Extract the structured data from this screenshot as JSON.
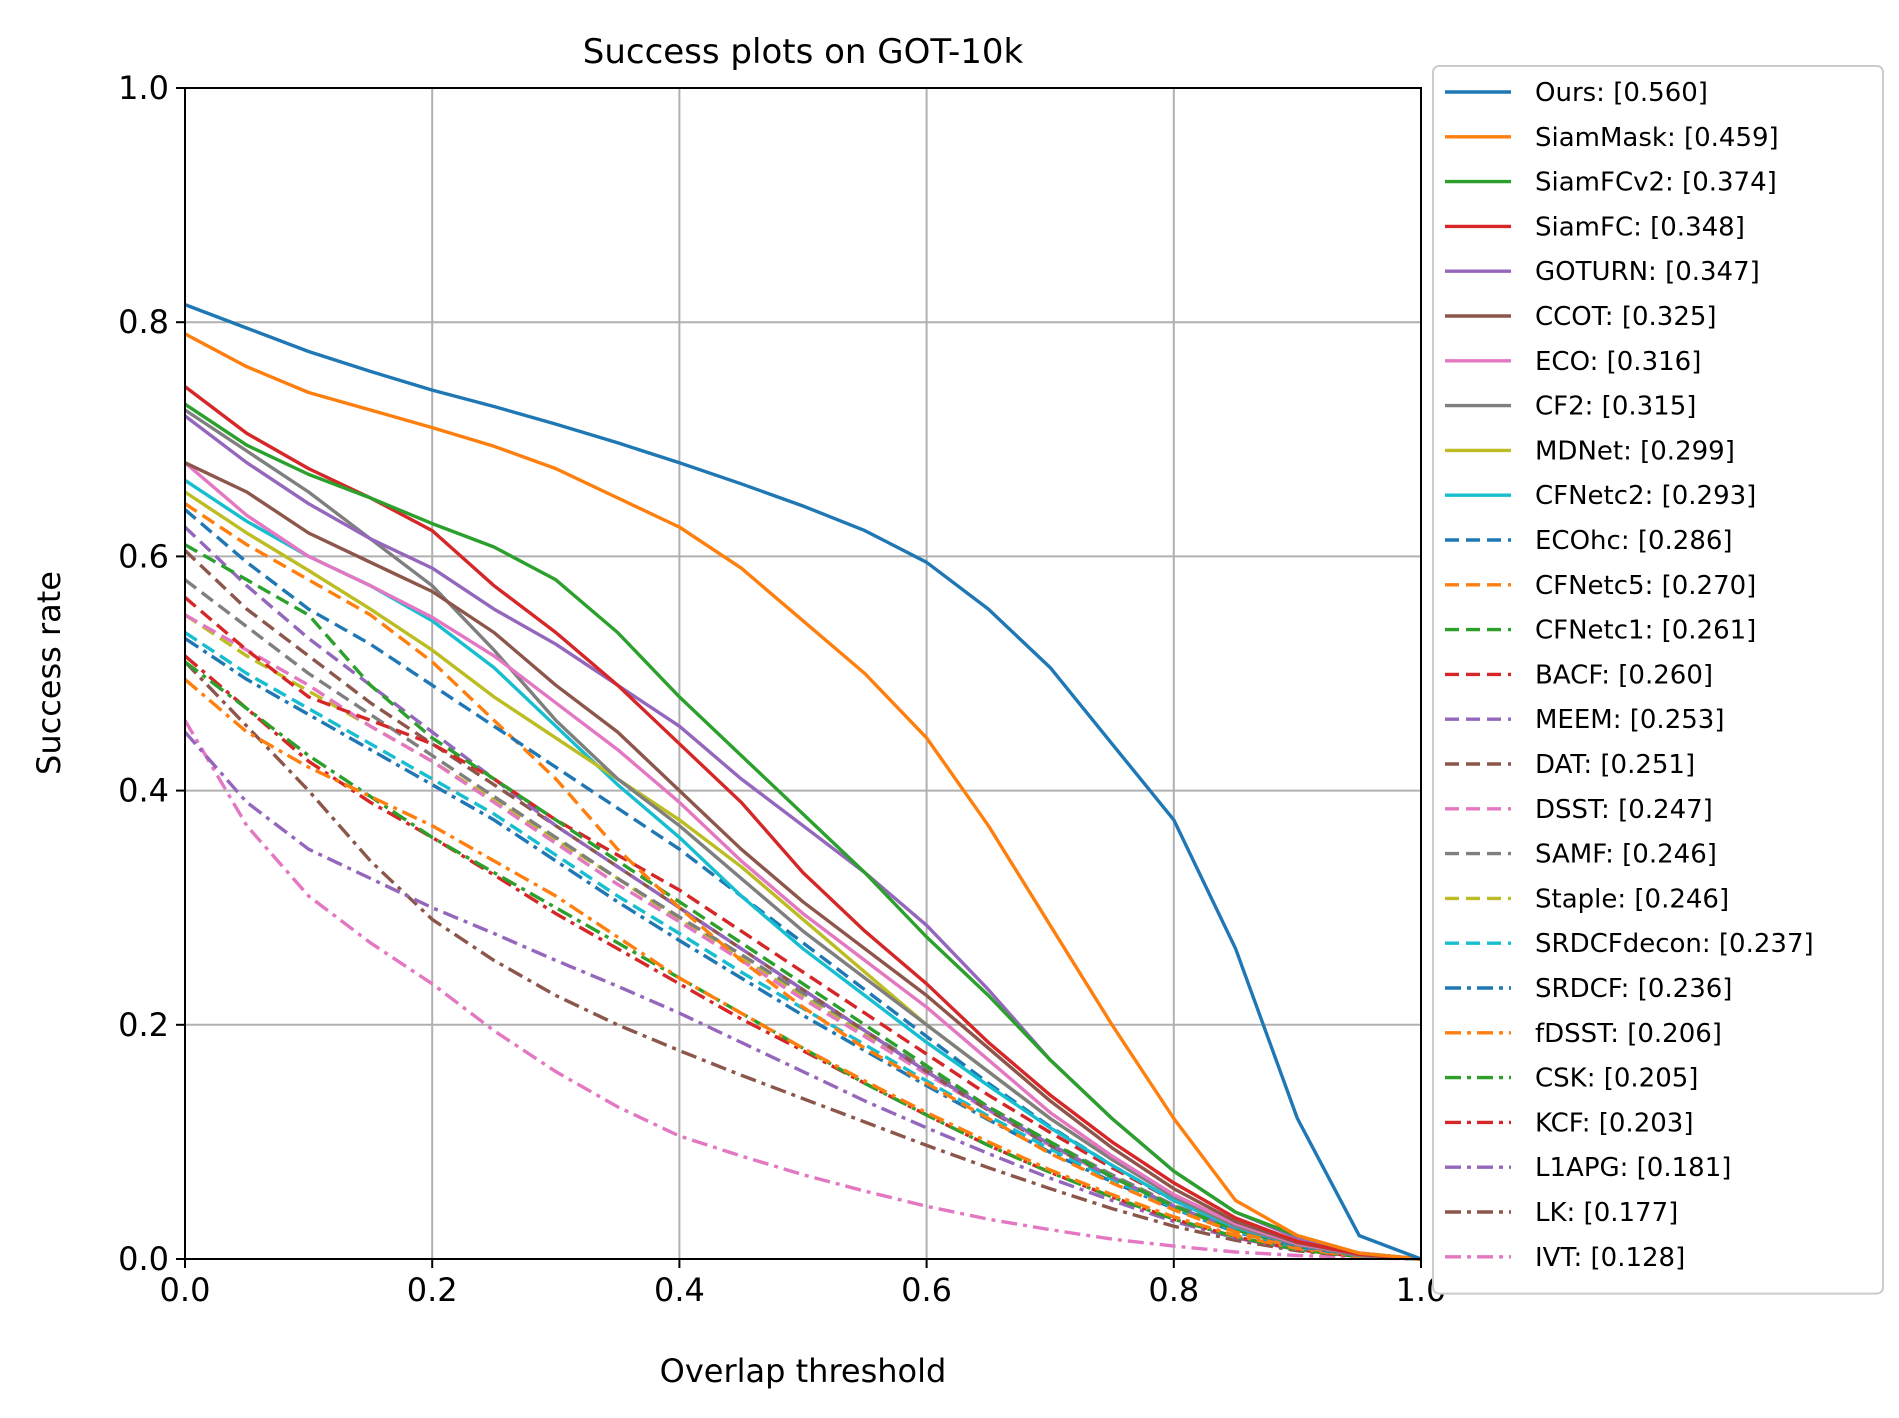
{
  "chart_data": {
    "type": "line",
    "title": "Success plots on GOT-10k",
    "xlabel": "Overlap threshold",
    "ylabel": "Success rate",
    "xlim": [
      0,
      1
    ],
    "ylim": [
      0,
      1
    ],
    "xticks": [
      "0.0",
      "0.2",
      "0.4",
      "0.6",
      "0.8",
      "1.0"
    ],
    "yticks": [
      "0.0",
      "0.2",
      "0.4",
      "0.6",
      "0.8",
      "1.0"
    ],
    "grid": true,
    "legend_position": "outside-right",
    "x": [
      0,
      0.05,
      0.1,
      0.15,
      0.2,
      0.25,
      0.3,
      0.35,
      0.4,
      0.45,
      0.5,
      0.55,
      0.6,
      0.65,
      0.7,
      0.75,
      0.8,
      0.85,
      0.9,
      0.95,
      1.0
    ],
    "series": [
      {
        "name": "Ours",
        "legend": "Ours: [0.560]",
        "color": "#1f77b4",
        "dash": "solid",
        "values": [
          0.815,
          0.795,
          0.775,
          0.758,
          0.742,
          0.728,
          0.713,
          0.697,
          0.68,
          0.662,
          0.643,
          0.622,
          0.595,
          0.555,
          0.505,
          0.44,
          0.375,
          0.265,
          0.12,
          0.02,
          0.0
        ]
      },
      {
        "name": "SiamMask",
        "legend": "SiamMask: [0.459]",
        "color": "#ff7f0e",
        "dash": "solid",
        "values": [
          0.79,
          0.762,
          0.74,
          0.725,
          0.71,
          0.694,
          0.675,
          0.65,
          0.625,
          0.59,
          0.545,
          0.5,
          0.445,
          0.37,
          0.285,
          0.2,
          0.12,
          0.05,
          0.02,
          0.005,
          0.0
        ]
      },
      {
        "name": "SiamFCv2",
        "legend": "SiamFCv2: [0.374]",
        "color": "#2ca02c",
        "dash": "solid",
        "values": [
          0.73,
          0.695,
          0.67,
          0.65,
          0.628,
          0.608,
          0.58,
          0.535,
          0.48,
          0.43,
          0.38,
          0.33,
          0.275,
          0.225,
          0.17,
          0.12,
          0.075,
          0.04,
          0.02,
          0.005,
          0.0
        ]
      },
      {
        "name": "SiamFC",
        "legend": "SiamFC: [0.348]",
        "color": "#d62728",
        "dash": "solid",
        "values": [
          0.745,
          0.705,
          0.675,
          0.65,
          0.622,
          0.575,
          0.535,
          0.49,
          0.44,
          0.39,
          0.33,
          0.28,
          0.235,
          0.185,
          0.14,
          0.1,
          0.065,
          0.035,
          0.015,
          0.004,
          0.0
        ]
      },
      {
        "name": "GOTURN",
        "legend": "GOTURN: [0.347]",
        "color": "#9467bd",
        "dash": "solid",
        "values": [
          0.72,
          0.68,
          0.645,
          0.615,
          0.59,
          0.555,
          0.525,
          0.49,
          0.455,
          0.41,
          0.37,
          0.33,
          0.285,
          0.23,
          0.17,
          0.12,
          0.075,
          0.04,
          0.018,
          0.005,
          0.0
        ]
      },
      {
        "name": "CCOT",
        "legend": "CCOT: [0.325]",
        "color": "#8c564b",
        "dash": "solid",
        "values": [
          0.68,
          0.655,
          0.62,
          0.595,
          0.57,
          0.535,
          0.49,
          0.45,
          0.4,
          0.35,
          0.305,
          0.265,
          0.225,
          0.18,
          0.135,
          0.095,
          0.06,
          0.032,
          0.014,
          0.004,
          0.0
        ]
      },
      {
        "name": "ECO",
        "legend": "ECO: [0.316]",
        "color": "#e377c2",
        "dash": "solid",
        "values": [
          0.68,
          0.635,
          0.6,
          0.575,
          0.548,
          0.515,
          0.475,
          0.435,
          0.39,
          0.34,
          0.295,
          0.255,
          0.215,
          0.17,
          0.125,
          0.088,
          0.055,
          0.03,
          0.013,
          0.004,
          0.0
        ]
      },
      {
        "name": "CF2",
        "legend": "CF2: [0.315]",
        "color": "#7f7f7f",
        "dash": "solid",
        "values": [
          0.725,
          0.69,
          0.655,
          0.615,
          0.575,
          0.52,
          0.46,
          0.41,
          0.37,
          0.325,
          0.28,
          0.24,
          0.2,
          0.16,
          0.12,
          0.085,
          0.053,
          0.028,
          0.012,
          0.003,
          0.0
        ]
      },
      {
        "name": "MDNet",
        "legend": "MDNet: [0.299]",
        "color": "#bcbd22",
        "dash": "solid",
        "values": [
          0.655,
          0.62,
          0.588,
          0.555,
          0.52,
          0.48,
          0.445,
          0.41,
          0.375,
          0.335,
          0.29,
          0.245,
          0.2,
          0.16,
          0.12,
          0.085,
          0.055,
          0.03,
          0.013,
          0.004,
          0.0
        ]
      },
      {
        "name": "CFNetc2",
        "legend": "CFNetc2: [0.293]",
        "color": "#17becf",
        "dash": "solid",
        "values": [
          0.665,
          0.63,
          0.6,
          0.575,
          0.545,
          0.505,
          0.455,
          0.405,
          0.36,
          0.31,
          0.265,
          0.225,
          0.185,
          0.148,
          0.112,
          0.08,
          0.05,
          0.027,
          0.012,
          0.003,
          0.0
        ]
      },
      {
        "name": "ECOhc",
        "legend": "ECOhc: [0.286]",
        "color": "#1f77b4",
        "dash": "dashed",
        "values": [
          0.64,
          0.595,
          0.555,
          0.525,
          0.49,
          0.455,
          0.42,
          0.385,
          0.35,
          0.31,
          0.27,
          0.23,
          0.19,
          0.15,
          0.113,
          0.08,
          0.05,
          0.027,
          0.011,
          0.003,
          0.0
        ]
      },
      {
        "name": "CFNetc5",
        "legend": "CFNetc5: [0.270]",
        "color": "#ff7f0e",
        "dash": "dashed",
        "values": [
          0.645,
          0.61,
          0.58,
          0.55,
          0.51,
          0.46,
          0.41,
          0.35,
          0.3,
          0.255,
          0.215,
          0.18,
          0.15,
          0.12,
          0.09,
          0.065,
          0.042,
          0.023,
          0.01,
          0.003,
          0.0
        ]
      },
      {
        "name": "CFNetc1",
        "legend": "CFNetc1: [0.261]",
        "color": "#2ca02c",
        "dash": "dashed",
        "values": [
          0.61,
          0.58,
          0.55,
          0.49,
          0.445,
          0.41,
          0.375,
          0.34,
          0.305,
          0.27,
          0.235,
          0.2,
          0.165,
          0.13,
          0.1,
          0.07,
          0.045,
          0.025,
          0.011,
          0.003,
          0.0
        ]
      },
      {
        "name": "BACF",
        "legend": "BACF: [0.260]",
        "color": "#d62728",
        "dash": "dashed",
        "values": [
          0.565,
          0.52,
          0.48,
          0.46,
          0.44,
          0.41,
          0.375,
          0.345,
          0.315,
          0.28,
          0.245,
          0.21,
          0.175,
          0.14,
          0.108,
          0.078,
          0.05,
          0.028,
          0.012,
          0.003,
          0.0
        ]
      },
      {
        "name": "MEEM",
        "legend": "MEEM: [0.253]",
        "color": "#9467bd",
        "dash": "dashed",
        "values": [
          0.625,
          0.575,
          0.53,
          0.49,
          0.45,
          0.41,
          0.37,
          0.335,
          0.3,
          0.265,
          0.23,
          0.195,
          0.16,
          0.128,
          0.098,
          0.07,
          0.045,
          0.025,
          0.011,
          0.003,
          0.0
        ]
      },
      {
        "name": "DAT",
        "legend": "DAT: [0.251]",
        "color": "#8c564b",
        "dash": "dashed",
        "values": [
          0.605,
          0.555,
          0.515,
          0.475,
          0.44,
          0.405,
          0.37,
          0.335,
          0.3,
          0.265,
          0.23,
          0.195,
          0.16,
          0.127,
          0.097,
          0.07,
          0.045,
          0.025,
          0.011,
          0.003,
          0.0
        ]
      },
      {
        "name": "DSST",
        "legend": "DSST: [0.247]",
        "color": "#e377c2",
        "dash": "dashed",
        "values": [
          0.55,
          0.52,
          0.49,
          0.455,
          0.425,
          0.39,
          0.355,
          0.32,
          0.288,
          0.255,
          0.222,
          0.19,
          0.158,
          0.127,
          0.097,
          0.07,
          0.045,
          0.025,
          0.011,
          0.003,
          0.0
        ]
      },
      {
        "name": "SAMF",
        "legend": "SAMF: [0.246]",
        "color": "#7f7f7f",
        "dash": "dashed",
        "values": [
          0.58,
          0.54,
          0.5,
          0.465,
          0.43,
          0.395,
          0.36,
          0.325,
          0.292,
          0.26,
          0.227,
          0.195,
          0.162,
          0.13,
          0.1,
          0.072,
          0.046,
          0.026,
          0.011,
          0.003,
          0.0
        ]
      },
      {
        "name": "Staple",
        "legend": "Staple: [0.246]",
        "color": "#bcbd22",
        "dash": "dashed",
        "values": [
          0.55,
          0.515,
          0.485,
          0.455,
          0.425,
          0.392,
          0.358,
          0.325,
          0.29,
          0.257,
          0.224,
          0.192,
          0.16,
          0.128,
          0.098,
          0.071,
          0.046,
          0.025,
          0.011,
          0.003,
          0.0
        ]
      },
      {
        "name": "SRDCFdecon",
        "legend": "SRDCFdecon: [0.237]",
        "color": "#17becf",
        "dash": "dashed",
        "values": [
          0.535,
          0.5,
          0.47,
          0.44,
          0.41,
          0.38,
          0.345,
          0.31,
          0.278,
          0.245,
          0.214,
          0.183,
          0.152,
          0.122,
          0.094,
          0.068,
          0.044,
          0.024,
          0.01,
          0.003,
          0.0
        ]
      },
      {
        "name": "SRDCF",
        "legend": "SRDCF: [0.236]",
        "color": "#1f77b4",
        "dash": "dashdot",
        "values": [
          0.53,
          0.495,
          0.465,
          0.435,
          0.405,
          0.375,
          0.34,
          0.305,
          0.272,
          0.24,
          0.208,
          0.178,
          0.148,
          0.119,
          0.091,
          0.066,
          0.043,
          0.023,
          0.01,
          0.003,
          0.0
        ]
      },
      {
        "name": "fDSST",
        "legend": "fDSST: [0.206]",
        "color": "#ff7f0e",
        "dash": "dashdot",
        "values": [
          0.495,
          0.45,
          0.42,
          0.395,
          0.37,
          0.34,
          0.31,
          0.275,
          0.24,
          0.21,
          0.18,
          0.152,
          0.125,
          0.1,
          0.076,
          0.055,
          0.036,
          0.02,
          0.009,
          0.002,
          0.0
        ]
      },
      {
        "name": "CSK",
        "legend": "CSK: [0.205]",
        "color": "#2ca02c",
        "dash": "dashdot",
        "values": [
          0.51,
          0.47,
          0.43,
          0.395,
          0.36,
          0.33,
          0.3,
          0.27,
          0.24,
          0.21,
          0.18,
          0.15,
          0.123,
          0.097,
          0.074,
          0.053,
          0.034,
          0.019,
          0.008,
          0.002,
          0.0
        ]
      },
      {
        "name": "KCF",
        "legend": "KCF: [0.203]",
        "color": "#d62728",
        "dash": "dashdot",
        "values": [
          0.515,
          0.47,
          0.425,
          0.39,
          0.36,
          0.328,
          0.295,
          0.265,
          0.235,
          0.205,
          0.178,
          0.15,
          0.123,
          0.097,
          0.074,
          0.053,
          0.034,
          0.019,
          0.008,
          0.002,
          0.0
        ]
      },
      {
        "name": "L1APG",
        "legend": "L1APG: [0.181]",
        "color": "#9467bd",
        "dash": "dashdot",
        "values": [
          0.45,
          0.39,
          0.35,
          0.325,
          0.3,
          0.278,
          0.255,
          0.233,
          0.21,
          0.185,
          0.16,
          0.135,
          0.112,
          0.09,
          0.069,
          0.05,
          0.032,
          0.018,
          0.008,
          0.002,
          0.0
        ]
      },
      {
        "name": "LK",
        "legend": "LK: [0.177]",
        "color": "#8c564b",
        "dash": "dashdot",
        "values": [
          0.51,
          0.455,
          0.4,
          0.34,
          0.29,
          0.255,
          0.225,
          0.2,
          0.178,
          0.157,
          0.137,
          0.117,
          0.097,
          0.078,
          0.06,
          0.043,
          0.028,
          0.016,
          0.007,
          0.002,
          0.0
        ]
      },
      {
        "name": "IVT",
        "legend": "IVT: [0.128]",
        "color": "#e377c2",
        "dash": "dashdot",
        "values": [
          0.46,
          0.37,
          0.31,
          0.27,
          0.235,
          0.195,
          0.16,
          0.13,
          0.105,
          0.088,
          0.072,
          0.058,
          0.045,
          0.034,
          0.025,
          0.017,
          0.011,
          0.006,
          0.003,
          0.001,
          0.0
        ]
      }
    ]
  }
}
